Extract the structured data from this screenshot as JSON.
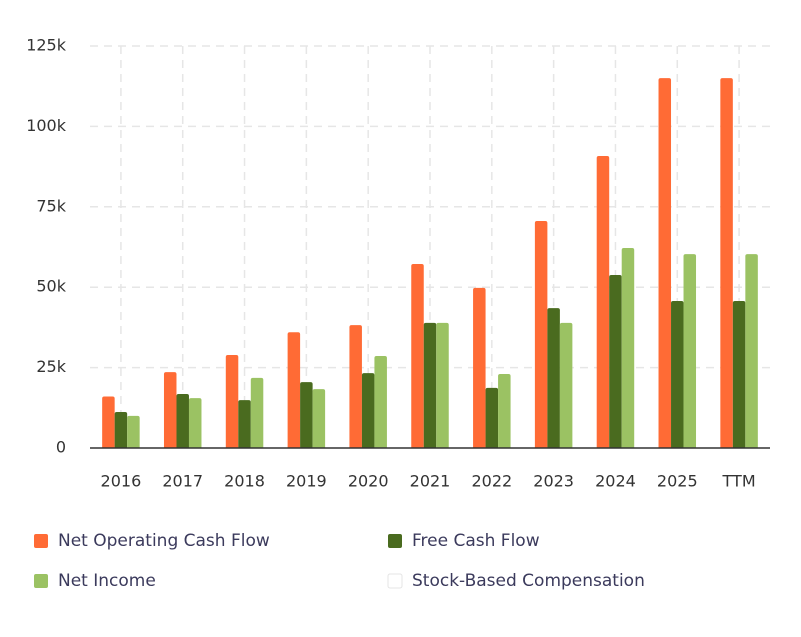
{
  "chart_data": {
    "type": "bar",
    "categories": [
      "2016",
      "2017",
      "2018",
      "2019",
      "2020",
      "2021",
      "2022",
      "2023",
      "2024",
      "2025",
      "TTM"
    ],
    "series": [
      {
        "name": "Net Operating Cash Flow",
        "color": "#ff6b35",
        "values": [
          16000,
          23600,
          28900,
          36000,
          38200,
          57200,
          49800,
          70600,
          90800,
          115000,
          115000
        ]
      },
      {
        "name": "Free Cash Flow",
        "color": "#4a6b1f",
        "values": [
          11200,
          16800,
          14900,
          20500,
          23300,
          38900,
          18700,
          43500,
          53800,
          45700,
          45700
        ]
      },
      {
        "name": "Net Income",
        "color": "#9bc263",
        "values": [
          10000,
          15500,
          21800,
          18300,
          28600,
          38900,
          23000,
          38900,
          62200,
          60300,
          60300
        ]
      },
      {
        "name": "Stock-Based Compensation",
        "color": "#ffffff",
        "values": [
          null,
          null,
          null,
          null,
          null,
          null,
          null,
          null,
          null,
          null,
          null
        ]
      }
    ],
    "ylim": [
      0,
      125000
    ],
    "yticks": [
      0,
      {
        "value": 25000,
        "label": "25k"
      },
      {
        "value": 50000,
        "label": "50k"
      },
      {
        "value": 75000,
        "label": "75k"
      },
      {
        "value": 100000,
        "label": "100k"
      },
      {
        "value": 125000,
        "label": "125k"
      }
    ],
    "grid": true
  }
}
